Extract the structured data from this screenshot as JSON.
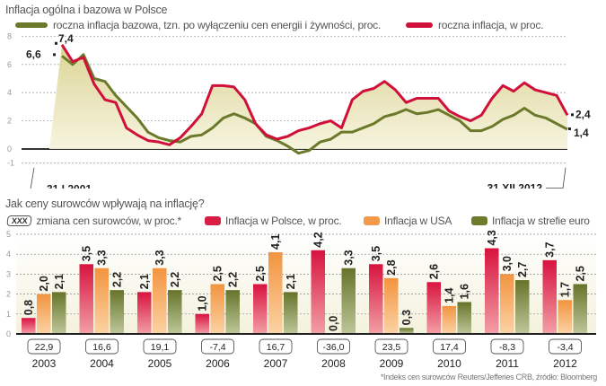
{
  "chart_data": [
    {
      "type": "line",
      "title": "Inflacja ogólna i bazowa w Polsce",
      "xlabel": "",
      "ylabel": "",
      "ylim": [
        -1,
        8
      ],
      "yticks": [
        8,
        6,
        4,
        2,
        0,
        -1
      ],
      "grid": true,
      "legend": "top",
      "x_start_label": "31 I 2001",
      "x_end_label": "31 XII 2012",
      "x": [
        "2001Q1",
        "2001Q2",
        "2001Q3",
        "2001Q4",
        "2002Q1",
        "2002Q2",
        "2002Q3",
        "2002Q4",
        "2003Q1",
        "2003Q2",
        "2003Q3",
        "2003Q4",
        "2004Q1",
        "2004Q2",
        "2004Q3",
        "2004Q4",
        "2005Q1",
        "2005Q2",
        "2005Q3",
        "2005Q4",
        "2006Q1",
        "2006Q2",
        "2006Q3",
        "2006Q4",
        "2007Q1",
        "2007Q2",
        "2007Q3",
        "2007Q4",
        "2008Q1",
        "2008Q2",
        "2008Q3",
        "2008Q4",
        "2009Q1",
        "2009Q2",
        "2009Q3",
        "2009Q4",
        "2010Q1",
        "2010Q2",
        "2010Q3",
        "2010Q4",
        "2011Q1",
        "2011Q2",
        "2011Q3",
        "2011Q4",
        "2012Q1",
        "2012Q2",
        "2012Q3",
        "2012Q4"
      ],
      "series": [
        {
          "name": "roczna inflacja bazowa, tzn. po wyłączeniu cen energii i żywności, proc.",
          "color": "#6b7a2a",
          "values": [
            6.6,
            6.0,
            6.7,
            5.0,
            4.8,
            3.8,
            3.0,
            2.2,
            1.2,
            0.8,
            0.6,
            0.5,
            0.9,
            1.0,
            1.5,
            2.2,
            2.5,
            2.2,
            1.8,
            0.9,
            0.6,
            0.2,
            -0.3,
            -0.1,
            0.5,
            0.7,
            1.2,
            1.2,
            1.5,
            1.8,
            2.3,
            2.5,
            2.8,
            2.5,
            2.6,
            2.8,
            2.4,
            2.0,
            1.3,
            1.3,
            1.6,
            2.1,
            2.4,
            2.9,
            2.4,
            2.2,
            1.8,
            1.4
          ],
          "start_label": "6,6",
          "end_label": "1,4"
        },
        {
          "name": "roczna inflacja, w proc.",
          "color": "#d0103a",
          "values": [
            7.4,
            6.2,
            6.5,
            4.6,
            3.5,
            3.3,
            1.5,
            1.0,
            0.6,
            0.5,
            0.3,
            0.8,
            1.6,
            2.5,
            4.5,
            4.5,
            4.4,
            3.5,
            1.8,
            1.0,
            0.7,
            0.9,
            1.3,
            1.5,
            1.8,
            2.0,
            1.5,
            3.5,
            4.1,
            4.3,
            4.8,
            4.2,
            3.3,
            3.6,
            3.6,
            3.6,
            2.7,
            2.3,
            2.0,
            2.4,
            3.6,
            4.5,
            4.1,
            4.7,
            4.2,
            4.0,
            3.8,
            2.4
          ],
          "start_label": "7,4",
          "end_label": "2,4"
        }
      ]
    },
    {
      "type": "bar",
      "title": "Jak ceny surowców wpływają na inflację?",
      "xlabel": "",
      "ylabel": "",
      "ylim": [
        0,
        5
      ],
      "yticks": [
        5,
        4,
        3,
        2,
        1,
        0
      ],
      "grid": true,
      "legend": "top",
      "categories": [
        "2003",
        "2004",
        "2005",
        "2006",
        "2007",
        "2008",
        "2009",
        "2010",
        "2011",
        "2012"
      ],
      "series": [
        {
          "name": "Inflacja w Polsce, w proc.",
          "color": "#d81e45",
          "values": [
            0.8,
            3.5,
            2.1,
            1.0,
            2.5,
            4.2,
            3.5,
            2.6,
            4.3,
            3.7
          ],
          "labels": [
            "0,8",
            "3,5",
            "2,1",
            "1,0",
            "2,5",
            "4,2",
            "3,5",
            "2,6",
            "4,3",
            "3,7"
          ]
        },
        {
          "name": "Inflacja w USA",
          "color": "#f39a4a",
          "values": [
            2.0,
            3.3,
            3.3,
            2.5,
            4.1,
            0.0,
            2.8,
            1.4,
            3.0,
            1.7
          ],
          "labels": [
            "2,0",
            "3,3",
            "3,3",
            "2,5",
            "4,1",
            "0,0",
            "2,8",
            "1,4",
            "3,0",
            "1,7"
          ]
        },
        {
          "name": "Inflacja w strefie euro",
          "color": "#6e7a2c",
          "values": [
            2.1,
            2.2,
            2.2,
            2.2,
            2.1,
            3.3,
            0.3,
            1.6,
            2.7,
            2.5
          ],
          "labels": [
            "2,1",
            "2,2",
            "2,2",
            "2,2",
            "2,1",
            "3,3",
            "0,3",
            "1,6",
            "2,7",
            "2,5"
          ]
        }
      ],
      "commodity_change": {
        "legend_box": "XXX",
        "legend_label": "zmiana cen surowców, w proc.*",
        "values": [
          "22,9",
          "16,6",
          "19,1",
          "-7,4",
          "16,7",
          "-36,0",
          "23,5",
          "17,4",
          "-8,3",
          "-3,4"
        ]
      },
      "footnote": "*Indeks cen surowców Reuters/Jefferies CRB, źródło: Bloomberg"
    }
  ]
}
